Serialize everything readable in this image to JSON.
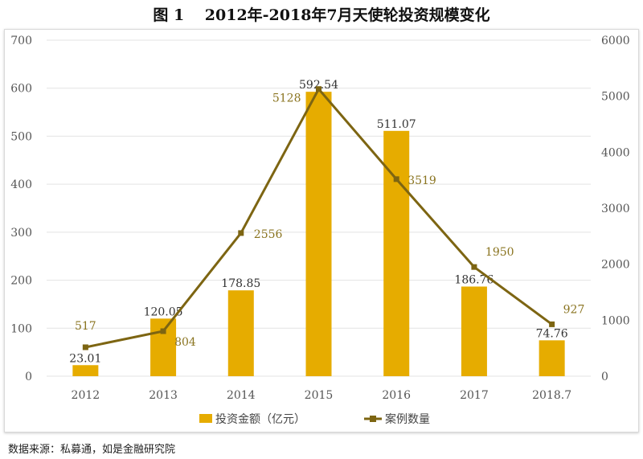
{
  "title": "图 1　 2012年-2018年7月天使轮投资规模变化",
  "source": "数据来源：私募通，如是金融研究院",
  "chart_data": {
    "type": "bar",
    "categories": [
      "2012",
      "2013",
      "2014",
      "2015",
      "2016",
      "2017",
      "2018.7"
    ],
    "series": [
      {
        "name": "投资金额（亿元）",
        "type": "bar",
        "axis": "left",
        "values": [
          23.01,
          120.05,
          178.85,
          592.54,
          511.07,
          186.76,
          74.76
        ],
        "labels": [
          "23.01",
          "120.05",
          "178.85",
          "592.54",
          "511.07",
          "186.76",
          "74.76"
        ],
        "color": "#e6ac00"
      },
      {
        "name": "案例数量",
        "type": "line",
        "axis": "right",
        "values": [
          517,
          804,
          2556,
          5128,
          3519,
          1950,
          927
        ],
        "labels": [
          "517",
          "804",
          "2556",
          "5128",
          "3519",
          "1950",
          "927"
        ],
        "color": "#7d6512"
      }
    ],
    "ylim_left": [
      0,
      700
    ],
    "yticks_left": [
      "0",
      "100",
      "200",
      "300",
      "400",
      "500",
      "600",
      "700"
    ],
    "ylim_right": [
      0,
      6000
    ],
    "yticks_right": [
      "0",
      "1000",
      "2000",
      "3000",
      "4000",
      "5000",
      "6000"
    ],
    "grid": true,
    "legend": "bottom"
  }
}
